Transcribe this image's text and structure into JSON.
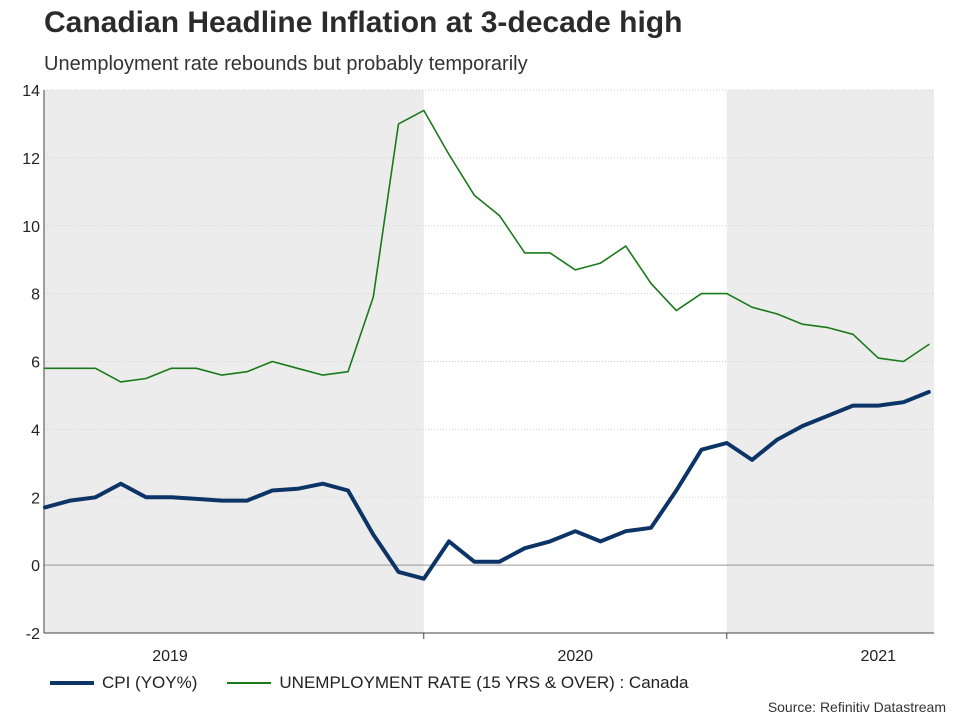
{
  "title": "Canadian Headline Inflation at 3-decade high",
  "subtitle": "Unemployment rate rebounds but probably temporarily",
  "source": "Source: Refinitiv Datastream",
  "chart_data": {
    "type": "line",
    "title": "Canadian Headline Inflation at 3-decade high",
    "subtitle": "Unemployment rate rebounds but probably temporarily",
    "ylim": [
      -2,
      14
    ],
    "yticks": [
      -2,
      0,
      2,
      4,
      6,
      8,
      10,
      12,
      14
    ],
    "x_start": "2018-10",
    "year_labels": [
      "2019",
      "2020",
      "2021"
    ],
    "shaded_years": [
      "2019",
      "2021"
    ],
    "grid": true,
    "series": [
      {
        "name": "CPI (YOY%)",
        "color": "#0d3466",
        "values": [
          1.7,
          1.9,
          2.0,
          2.4,
          2.0,
          2.0,
          1.95,
          1.9,
          1.9,
          2.2,
          2.25,
          2.4,
          2.2,
          0.9,
          -0.2,
          -0.4,
          0.7,
          0.1,
          0.1,
          0.5,
          0.7,
          1.0,
          0.7,
          1.0,
          1.1,
          2.2,
          3.4,
          3.6,
          3.1,
          3.7,
          4.1,
          4.4,
          4.7,
          4.7,
          4.8,
          5.1
        ]
      },
      {
        "name": "UNEMPLOYMENT RATE (15 YRS & OVER) : Canada",
        "color": "#1a7a1a",
        "values": [
          5.8,
          5.8,
          5.8,
          5.4,
          5.5,
          5.8,
          5.8,
          5.6,
          5.7,
          6.0,
          5.8,
          5.6,
          5.7,
          7.9,
          13.0,
          13.4,
          12.1,
          10.9,
          10.3,
          9.2,
          9.2,
          8.7,
          8.9,
          9.4,
          8.3,
          7.5,
          8.0,
          8.0,
          7.6,
          7.4,
          7.1,
          7.0,
          6.8,
          6.1,
          6.0,
          6.5
        ]
      }
    ]
  }
}
